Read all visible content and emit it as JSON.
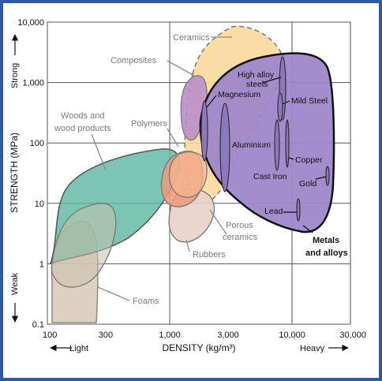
{
  "chart_data": {
    "type": "scatter",
    "x_axis": {
      "label": "DENSITY (kg/m³)",
      "scale": "log",
      "range": [
        100,
        30000
      ],
      "ticks": [
        "100",
        "300",
        "1,000",
        "3,000",
        "10,000",
        "30,000"
      ],
      "left_hint": "Light",
      "right_hint": "Heavy"
    },
    "y_axis": {
      "label": "STRENGTH (MPa)",
      "scale": "log",
      "range": [
        0.1,
        10000
      ],
      "ticks": [
        "0.1",
        "1",
        "10",
        "100",
        "1,000",
        "10,000"
      ],
      "top_hint": "Strong",
      "bottom_hint": "Weak"
    },
    "grid": true,
    "material_families": [
      {
        "name": "Woods and wood products",
        "density_range": [
          100,
          1500
        ],
        "strength_range": [
          1,
          80
        ],
        "color": "#5fb8a4"
      },
      {
        "name": "Foams",
        "density_range": [
          100,
          600
        ],
        "strength_range": [
          0.1,
          10
        ],
        "color": "#d9c9b6"
      },
      {
        "name": "Ceramics",
        "density_range": [
          1500,
          10000
        ],
        "strength_range": [
          10,
          10000
        ],
        "color": "#f8d99a"
      },
      {
        "name": "Composites",
        "density_range": [
          1500,
          2000
        ],
        "strength_range": [
          80,
          1500
        ],
        "color": "#b98fc9"
      },
      {
        "name": "Polymers",
        "density_range": [
          900,
          2000
        ],
        "strength_range": [
          10,
          100
        ],
        "color": "#f2977a"
      },
      {
        "name": "Porous ceramics",
        "density_range": [
          1000,
          2500
        ],
        "strength_range": [
          10,
          100
        ],
        "color": "#f2b690"
      },
      {
        "name": "Rubbers",
        "density_range": [
          1000,
          2000
        ],
        "strength_range": [
          1,
          10
        ],
        "color": "#e8d2c6"
      },
      {
        "name": "Metals and alloys",
        "density_range": [
          1700,
          22000
        ],
        "strength_range": [
          4,
          3000
        ],
        "color": "#9e87c9"
      }
    ],
    "metals": [
      {
        "name": "Magnesium",
        "density_range": [
          1700,
          1900
        ],
        "strength_range": [
          80,
          350
        ]
      },
      {
        "name": "Aluminium",
        "density_range": [
          2500,
          2900
        ],
        "strength_range": [
          30,
          600
        ]
      },
      {
        "name": "High alloy steels",
        "density_range": [
          7500,
          8200
        ],
        "strength_range": [
          300,
          2500
        ]
      },
      {
        "name": "Mild Steel",
        "density_range": [
          7500,
          8000
        ],
        "strength_range": [
          200,
          500
        ]
      },
      {
        "name": "Cast Iron",
        "density_range": [
          7000,
          7500
        ],
        "strength_range": [
          60,
          400
        ]
      },
      {
        "name": "Copper",
        "density_range": [
          8600,
          9000
        ],
        "strength_range": [
          30,
          200
        ]
      },
      {
        "name": "Gold",
        "density_range": [
          19000,
          19500
        ],
        "strength_range": [
          20,
          40
        ]
      },
      {
        "name": "Lead",
        "density_range": [
          11000,
          11500
        ],
        "strength_range": [
          5,
          12
        ]
      }
    ]
  },
  "labels": {
    "ceramics": "Ceramics",
    "composites": "Composites",
    "woods_l1": "Woods and",
    "woods_l2": "wood products",
    "polymers": "Polymers",
    "porous_l1": "Porous",
    "porous_l2": "ceramics",
    "rubbers": "Rubbers",
    "foams": "Foams",
    "metals_l1": "Metals",
    "metals_l2": "and alloys",
    "magnesium": "Magnesium",
    "aluminium": "Aluminium",
    "high_alloy_l1": "High alloy",
    "high_alloy_l2": "steels",
    "mild_steel": "Mild Steel",
    "cast_iron": "Cast Iron",
    "copper": "Copper",
    "gold": "Gold",
    "lead": "Lead"
  }
}
